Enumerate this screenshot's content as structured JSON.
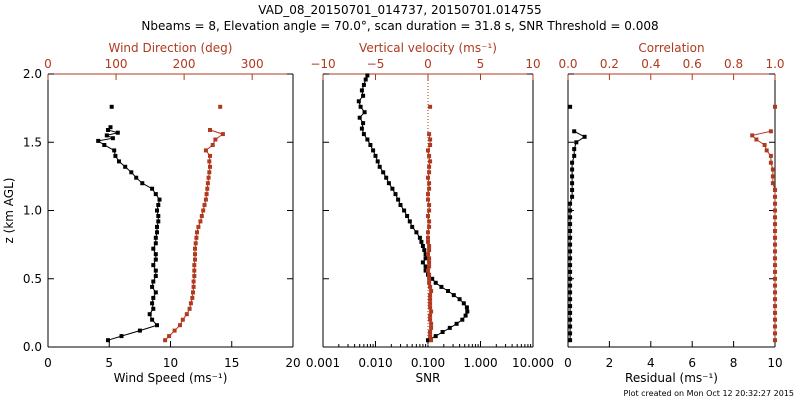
{
  "header": {
    "line1": "VAD_08_20150701_014737, 20150701.014755",
    "line2": "Nbeams = 8, Elevation angle = 70.0°, scan duration = 31.8 s, SNR Threshold = 0.008"
  },
  "footer": {
    "timestamp": "Plot created on Mon Oct 12 20:32:27 2015"
  },
  "colors": {
    "primary": "#000000",
    "secondary": "#b0391f"
  },
  "chart_data": [
    {
      "type": "line",
      "ylabel": "z (km AGL)",
      "ylim": [
        0,
        2
      ],
      "yticks": [
        "0.0",
        "0.5",
        "1.0",
        "1.5",
        "2.0"
      ],
      "bottom_axis": {
        "label": "Wind Speed (ms⁻¹)",
        "lim": [
          0,
          20
        ],
        "ticks": [
          "0",
          "5",
          "10",
          "15",
          "20"
        ]
      },
      "top_axis": {
        "label": "Wind Direction (deg)",
        "lim": [
          0,
          360
        ],
        "ticks": [
          "0",
          "100",
          "200",
          "300"
        ]
      },
      "series": [
        {
          "axis": "bottom",
          "color": "#000000",
          "z": [
            0.05,
            0.08,
            0.12,
            0.16,
            0.2,
            0.24,
            0.28,
            0.32,
            0.36,
            0.4,
            0.44,
            0.48,
            0.52,
            0.56,
            0.6,
            0.64,
            0.68,
            0.72,
            0.76,
            0.8,
            0.84,
            0.88,
            0.92,
            0.96,
            1.0,
            1.04,
            1.08,
            1.12,
            1.16,
            1.2,
            1.24,
            1.28,
            1.32,
            1.36,
            1.4,
            1.44,
            1.48,
            1.51,
            1.53,
            1.55,
            1.57,
            1.59,
            1.61
          ],
          "x": [
            4.9,
            6.0,
            7.5,
            8.9,
            8.5,
            8.3,
            8.6,
            8.5,
            8.6,
            8.8,
            8.5,
            8.6,
            8.8,
            8.8,
            8.6,
            8.8,
            8.8,
            8.6,
            8.8,
            8.8,
            8.9,
            8.9,
            9.0,
            9.0,
            8.9,
            9.0,
            9.1,
            8.8,
            8.5,
            7.7,
            7.2,
            6.8,
            6.3,
            5.8,
            5.5,
            5.4,
            4.6,
            4.1,
            5.3,
            4.8,
            5.7,
            4.9,
            5.1
          ]
        },
        {
          "axis": "bottom",
          "color": "#000000",
          "z": [
            1.76
          ],
          "x": [
            5.2
          ]
        },
        {
          "axis": "top",
          "color": "#b0391f",
          "z": [
            0.05,
            0.08,
            0.12,
            0.16,
            0.2,
            0.24,
            0.28,
            0.32,
            0.36,
            0.4,
            0.44,
            0.48,
            0.52,
            0.56,
            0.6,
            0.64,
            0.68,
            0.72,
            0.76,
            0.8,
            0.84,
            0.88,
            0.92,
            0.96,
            1.0,
            1.04,
            1.08,
            1.12,
            1.16,
            1.2,
            1.24,
            1.28,
            1.32,
            1.36,
            1.4,
            1.44,
            1.48,
            1.52,
            1.56,
            1.59
          ],
          "x": [
            172,
            178,
            186,
            194,
            198,
            204,
            208,
            210,
            212,
            213,
            214,
            214,
            215,
            215,
            215,
            216,
            216,
            216,
            217,
            218,
            219,
            221,
            224,
            226,
            228,
            230,
            232,
            233,
            234,
            235,
            236,
            237,
            238,
            237,
            238,
            232,
            242,
            246,
            257,
            238
          ]
        },
        {
          "axis": "top",
          "color": "#b0391f",
          "z": [
            1.76
          ],
          "x": [
            253
          ]
        }
      ]
    },
    {
      "type": "line",
      "ylim": [
        0,
        2
      ],
      "bottom_axis": {
        "label": "SNR",
        "lim": [
          0.001,
          10
        ],
        "scale": "log",
        "ticks": [
          "0.001",
          "0.010",
          "0.100",
          "1.000",
          "10.000"
        ]
      },
      "top_axis": {
        "label": "Vertical velocity (ms⁻¹)",
        "lim": [
          -10,
          10
        ],
        "ticks": [
          "−10",
          "−5",
          "0",
          "5",
          "10"
        ]
      },
      "reference_line": {
        "axis": "top",
        "value": 0
      },
      "series": [
        {
          "axis": "bottom",
          "color": "#000000",
          "z": [
            0.05,
            0.08,
            0.11,
            0.14,
            0.17,
            0.2,
            0.23,
            0.26,
            0.29,
            0.32,
            0.35,
            0.38,
            0.41,
            0.44,
            0.47,
            0.5,
            0.53,
            0.56,
            0.59,
            0.62,
            0.65,
            0.68,
            0.71,
            0.74,
            0.77,
            0.8,
            0.84,
            0.88,
            0.92,
            0.96,
            1.0,
            1.04,
            1.08,
            1.12,
            1.16,
            1.2,
            1.24,
            1.28,
            1.32,
            1.36,
            1.4,
            1.44,
            1.48,
            1.52,
            1.56,
            1.6,
            1.64,
            1.68,
            1.72,
            1.76,
            1.8,
            1.84,
            1.88,
            1.92,
            1.96,
            1.99
          ],
          "x": [
            0.1,
            0.14,
            0.19,
            0.26,
            0.35,
            0.45,
            0.52,
            0.56,
            0.55,
            0.48,
            0.4,
            0.31,
            0.24,
            0.18,
            0.14,
            0.12,
            0.1,
            0.09,
            0.09,
            0.08,
            0.09,
            0.09,
            0.085,
            0.08,
            0.075,
            0.07,
            0.06,
            0.05,
            0.045,
            0.04,
            0.035,
            0.03,
            0.027,
            0.024,
            0.021,
            0.018,
            0.016,
            0.014,
            0.012,
            0.011,
            0.01,
            0.009,
            0.008,
            0.007,
            0.006,
            0.0055,
            0.0058,
            0.005,
            0.0062,
            0.0052,
            0.0048,
            0.0058,
            0.0055,
            0.006,
            0.0065,
            0.007
          ]
        },
        {
          "axis": "top",
          "color": "#b0391f",
          "z": [
            0.05,
            0.08,
            0.11,
            0.14,
            0.17,
            0.2,
            0.23,
            0.26,
            0.29,
            0.32,
            0.35,
            0.38,
            0.41,
            0.44,
            0.47,
            0.5,
            0.53,
            0.56,
            0.59,
            0.62,
            0.65,
            0.68,
            0.71,
            0.74,
            0.77,
            0.8,
            0.84,
            0.88,
            0.92,
            0.96,
            1.0,
            1.04,
            1.08,
            1.12,
            1.16,
            1.2,
            1.24,
            1.28,
            1.32,
            1.36,
            1.4,
            1.44,
            1.48,
            1.52,
            1.56
          ],
          "x": [
            0.3,
            0.2,
            0.2,
            0.3,
            0.3,
            0.2,
            0.2,
            0.3,
            0.2,
            0.2,
            0.2,
            0.2,
            0.3,
            0.2,
            0.1,
            0.1,
            0.1,
            0.0,
            0.1,
            0.1,
            0.1,
            0.0,
            0.1,
            0.1,
            0.0,
            0.0,
            0.0,
            0.1,
            0.1,
            0.0,
            0.1,
            0.1,
            0.0,
            0.0,
            0.1,
            0.1,
            0.0,
            0.1,
            0.1,
            0.2,
            0.1,
            0.0,
            0.2,
            0.2,
            0.1
          ]
        },
        {
          "axis": "top",
          "color": "#b0391f",
          "z": [
            1.76
          ],
          "x": [
            0.2
          ]
        }
      ]
    },
    {
      "type": "line",
      "ylim": [
        0,
        2
      ],
      "bottom_axis": {
        "label": "Residual (ms⁻¹)",
        "lim": [
          0,
          10
        ],
        "ticks": [
          "0",
          "2",
          "4",
          "6",
          "8",
          "10"
        ]
      },
      "top_axis": {
        "label": "Correlation",
        "lim": [
          0,
          1
        ],
        "ticks": [
          "0.0",
          "0.2",
          "0.4",
          "0.6",
          "0.8",
          "1.0"
        ]
      },
      "series": [
        {
          "axis": "bottom",
          "color": "#000000",
          "z": [
            0.05,
            0.1,
            0.15,
            0.2,
            0.25,
            0.3,
            0.35,
            0.4,
            0.45,
            0.5,
            0.55,
            0.6,
            0.65,
            0.7,
            0.75,
            0.8,
            0.85,
            0.9,
            0.95,
            1.0,
            1.05,
            1.1,
            1.15,
            1.2,
            1.25,
            1.3,
            1.35,
            1.4,
            1.45,
            1.5,
            1.54,
            1.58
          ],
          "x": [
            0.1,
            0.1,
            0.1,
            0.1,
            0.1,
            0.1,
            0.1,
            0.1,
            0.1,
            0.1,
            0.1,
            0.1,
            0.1,
            0.1,
            0.1,
            0.1,
            0.1,
            0.1,
            0.1,
            0.1,
            0.1,
            0.2,
            0.2,
            0.2,
            0.2,
            0.2,
            0.2,
            0.3,
            0.3,
            0.4,
            0.8,
            0.3
          ]
        },
        {
          "axis": "bottom",
          "color": "#000000",
          "z": [
            1.76
          ],
          "x": [
            0.1
          ]
        },
        {
          "axis": "top",
          "color": "#b0391f",
          "z": [
            0.05,
            0.1,
            0.15,
            0.2,
            0.25,
            0.3,
            0.35,
            0.4,
            0.45,
            0.5,
            0.55,
            0.6,
            0.65,
            0.7,
            0.75,
            0.8,
            0.85,
            0.9,
            0.95,
            1.0,
            1.05,
            1.1,
            1.15,
            1.2,
            1.25,
            1.3,
            1.35,
            1.4,
            1.44,
            1.48,
            1.52,
            1.55,
            1.58
          ],
          "x": [
            1.0,
            1.0,
            1.0,
            1.0,
            1.0,
            1.0,
            1.0,
            1.0,
            1.0,
            1.0,
            1.0,
            1.0,
            1.0,
            1.0,
            1.0,
            1.0,
            1.0,
            1.0,
            1.0,
            1.0,
            1.0,
            1.0,
            1.0,
            0.99,
            0.99,
            0.99,
            0.98,
            0.98,
            0.96,
            0.95,
            0.91,
            0.89,
            0.98
          ]
        },
        {
          "axis": "top",
          "color": "#b0391f",
          "z": [
            1.76
          ],
          "x": [
            1.0
          ]
        }
      ]
    }
  ]
}
